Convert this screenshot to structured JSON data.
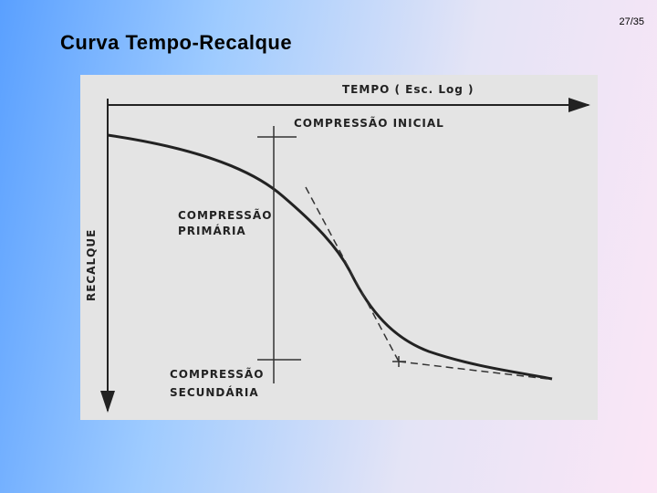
{
  "slide_number": "27/35",
  "title": "Curva Tempo-Recalque",
  "diagram": {
    "x_axis_label": "TEMPO ( Esc. Log )",
    "y_axis_label": "RECALQUE",
    "labels": [
      {
        "lines": [
          "COMPRESSÃO INICIAL"
        ]
      },
      {
        "lines": [
          "COMPRESSÃO",
          "PRIMÁRIA"
        ]
      },
      {
        "lines": [
          "COMPRESSÃO",
          "SECUNDÁRIA"
        ]
      }
    ]
  }
}
